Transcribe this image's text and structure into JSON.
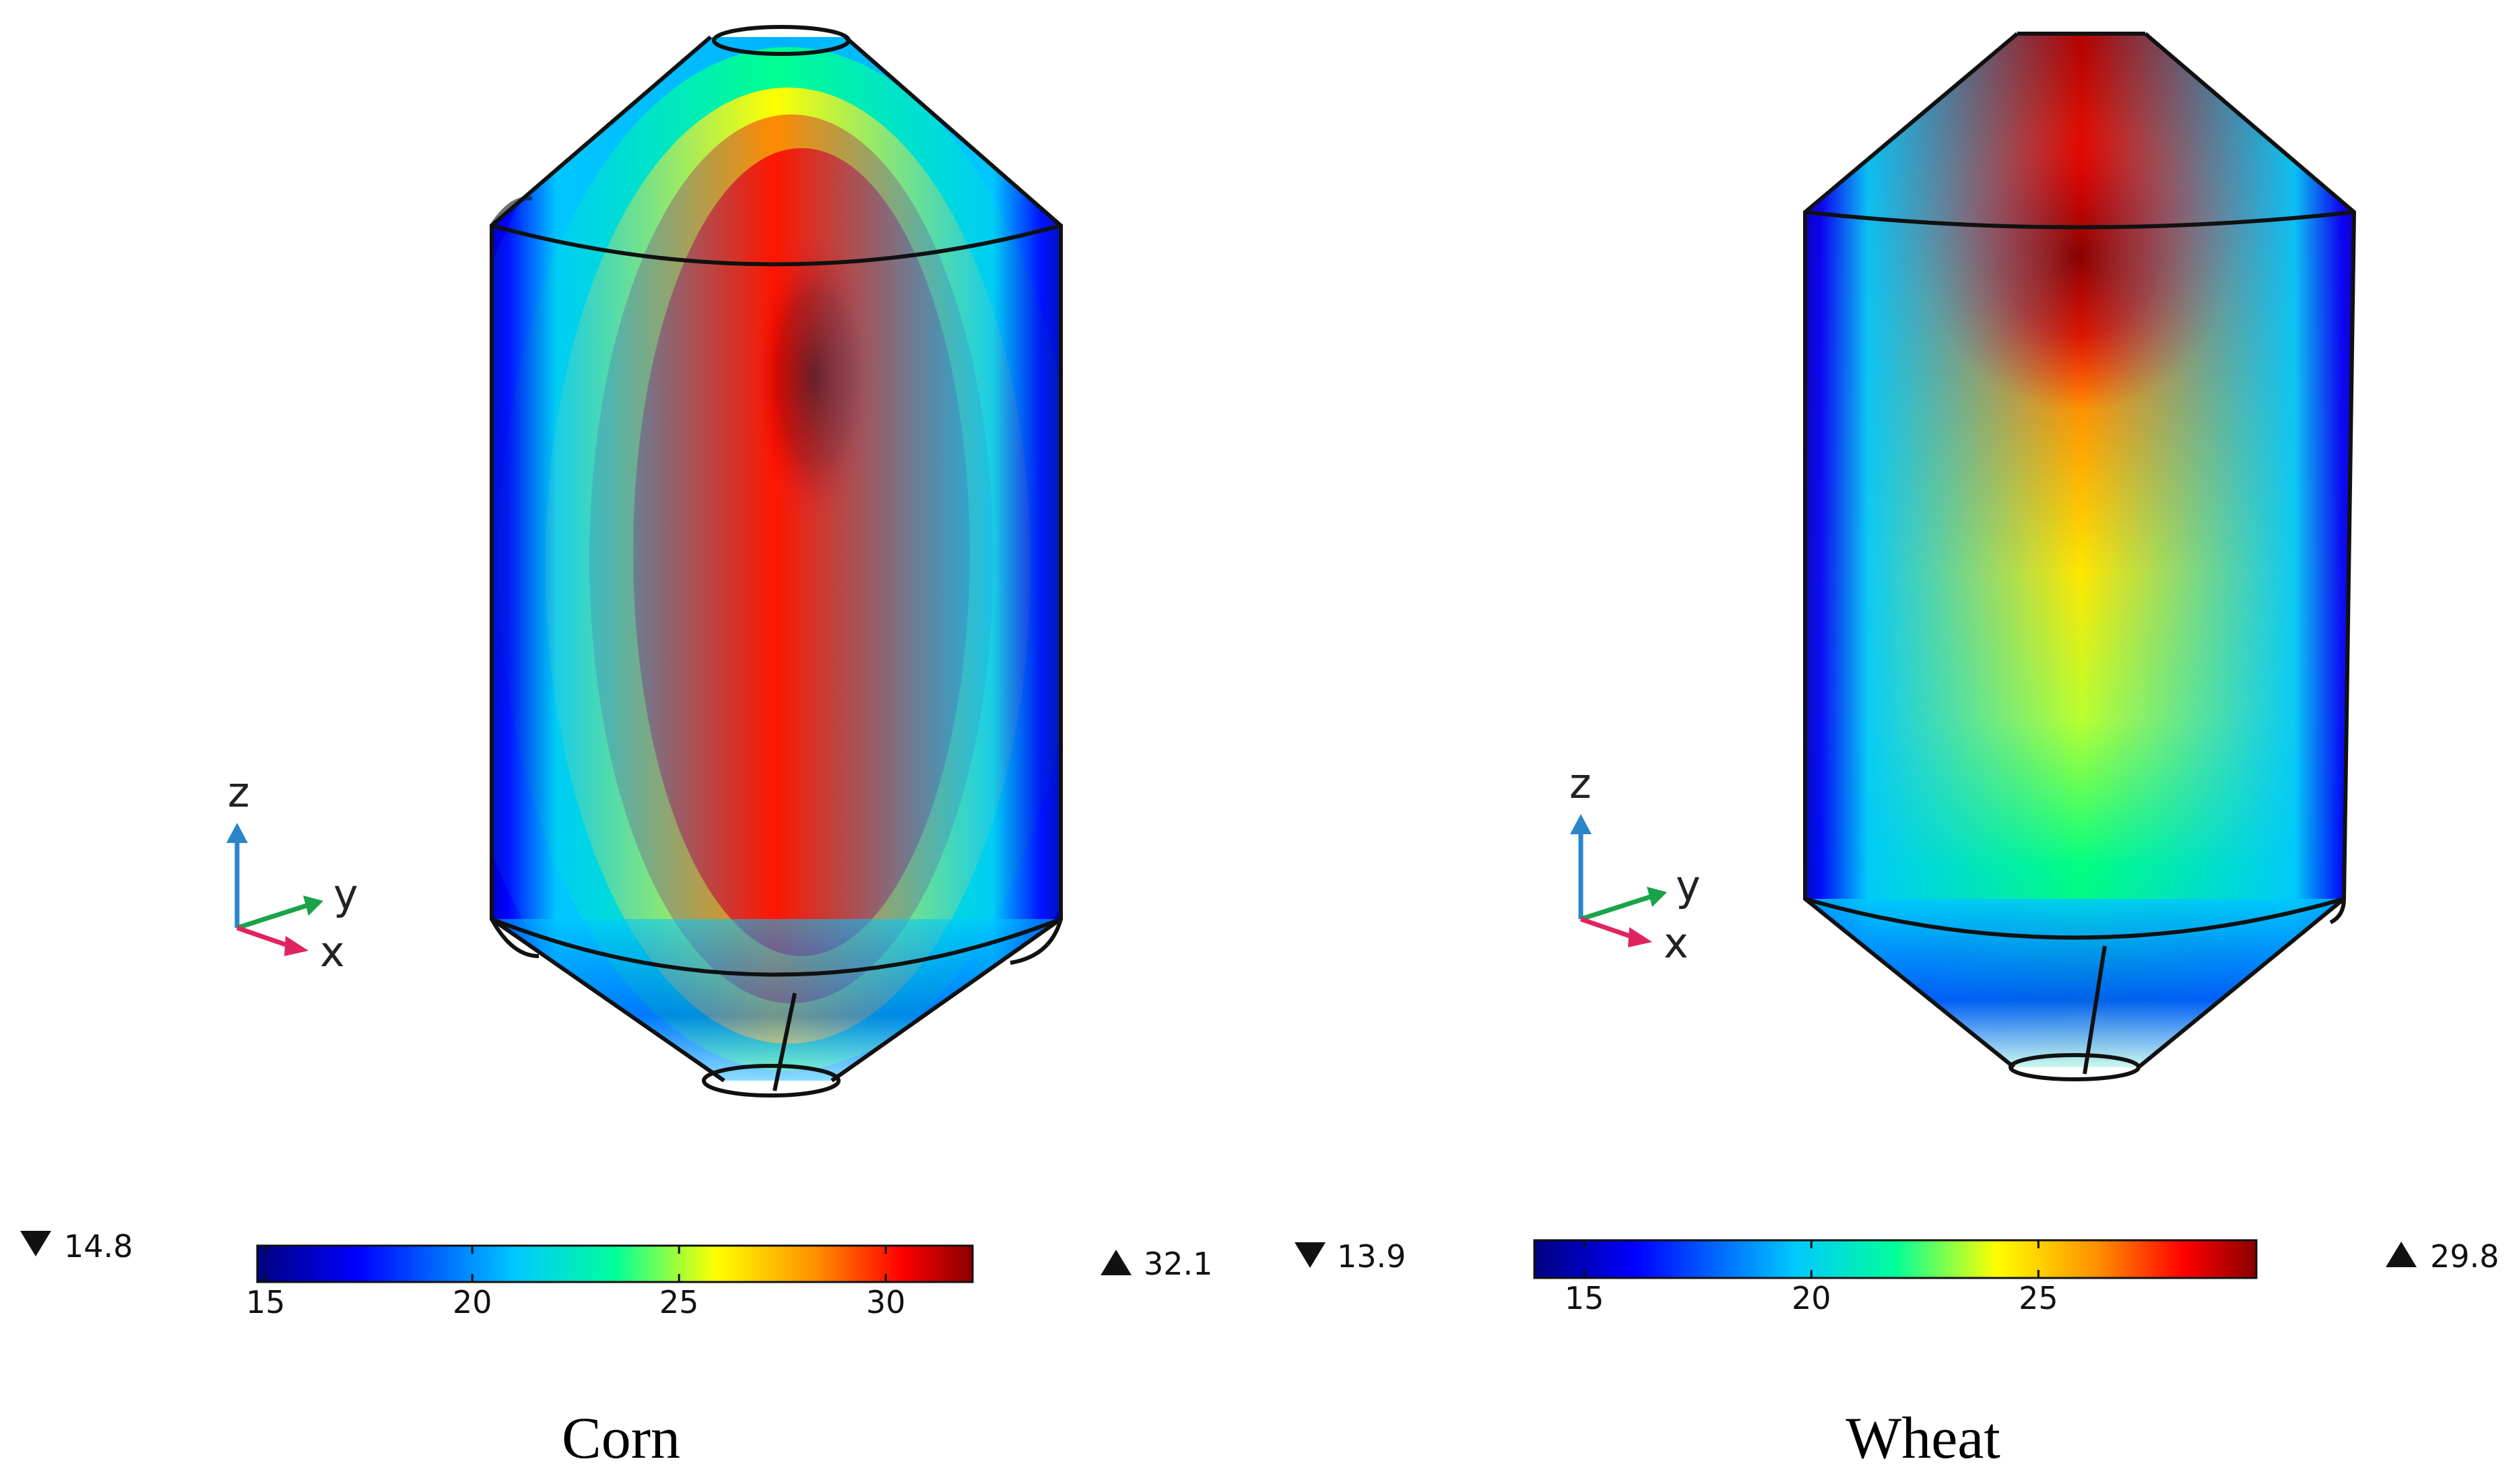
{
  "panels": [
    {
      "caption": "Corn",
      "colorbar": {
        "min_label": "14.8",
        "max_label": "32.1",
        "min": 14.8,
        "max": 32.1,
        "ticks": [
          "15",
          "20",
          "25",
          "30"
        ]
      },
      "axes": {
        "z": "z",
        "y": "y",
        "x": "x"
      }
    },
    {
      "caption": "Wheat",
      "colorbar": {
        "min_label": "13.9",
        "max_label": "29.8",
        "min": 13.9,
        "max": 29.8,
        "ticks": [
          "15",
          "20",
          "25"
        ]
      },
      "axes": {
        "z": "z",
        "y": "y",
        "x": "x"
      }
    }
  ],
  "colors": {
    "colormap": [
      "#00007f",
      "#0000ff",
      "#00c8ff",
      "#00ff9a",
      "#ffff00",
      "#ff9000",
      "#ff0000",
      "#8a0000"
    ],
    "axis_z": "#2a86c9",
    "axis_y": "#1aa34a",
    "axis_x": "#e0245e",
    "outline": "#111111"
  },
  "icons": [
    "triangle-down-icon",
    "triangle-up-icon"
  ]
}
